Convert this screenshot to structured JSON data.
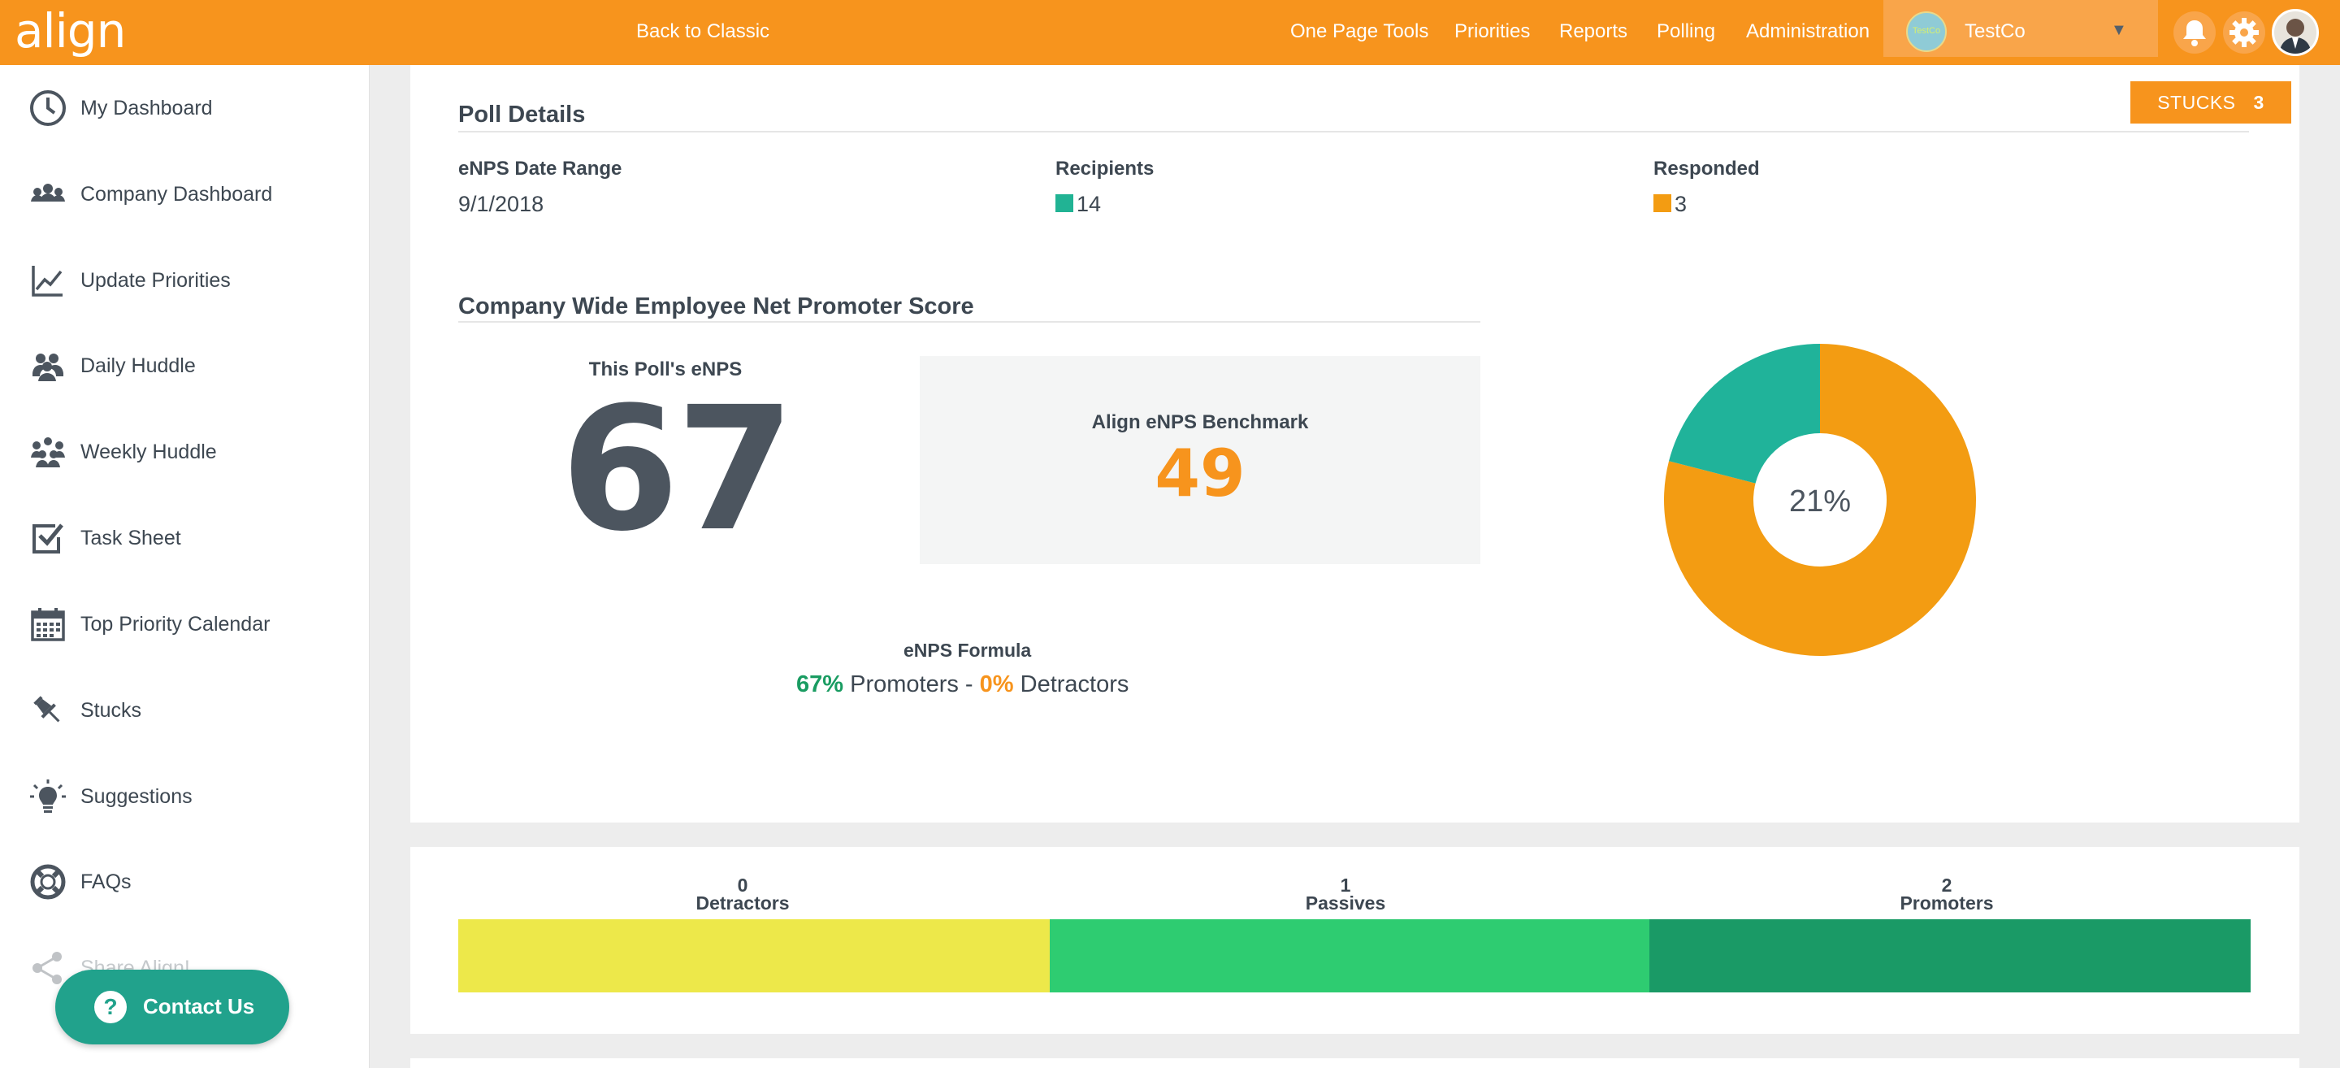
{
  "topbar": {
    "logo": "align",
    "back_classic": "Back to Classic",
    "nav": [
      "One Page Tools",
      "Priorities",
      "Reports",
      "Polling",
      "Administration"
    ],
    "company": {
      "name": "TestCo",
      "logo_text": "TestCo"
    }
  },
  "sidebar": {
    "items": [
      {
        "label": "My Dashboard",
        "icon": "dashboard-clock-icon"
      },
      {
        "label": "Company Dashboard",
        "icon": "company-people-icon"
      },
      {
        "label": "Update Priorities",
        "icon": "line-chart-icon"
      },
      {
        "label": "Daily Huddle",
        "icon": "group-icon"
      },
      {
        "label": "Weekly Huddle",
        "icon": "team-icon"
      },
      {
        "label": "Task Sheet",
        "icon": "checkbox-icon"
      },
      {
        "label": "Top Priority Calendar",
        "icon": "calendar-icon"
      },
      {
        "label": "Stucks",
        "icon": "pin-icon"
      },
      {
        "label": "Suggestions",
        "icon": "lightbulb-icon"
      },
      {
        "label": "FAQs",
        "icon": "lifebuoy-icon"
      },
      {
        "label": "Share Align!",
        "icon": "share-icon"
      }
    ],
    "contact": "Contact Us"
  },
  "stucks": {
    "label": "STUCKS",
    "count": "3"
  },
  "poll_details": {
    "title": "Poll Details",
    "date_range_label": "eNPS Date Range",
    "date_range_value": "9/1/2018",
    "recipients_label": "Recipients",
    "recipients_value": "14",
    "responded_label": "Responded",
    "responded_value": "3",
    "recipients_color": "#21b394",
    "responded_color": "#f39c12"
  },
  "enps": {
    "title": "Company Wide Employee Net Promoter Score",
    "poll_label": "This Poll's eNPS",
    "poll_value": "67",
    "benchmark_label": "Align eNPS Benchmark",
    "benchmark_value": "49",
    "formula_label": "eNPS Formula",
    "formula_promoters_pct": "67%",
    "formula_promoters_text": "Promoters -",
    "formula_detractors_pct": "0%",
    "formula_detractors_text": "Detractors"
  },
  "donut": {
    "center_label": "21%",
    "responded_fraction": 0.21,
    "colors": {
      "responded": "#20b39a",
      "rest": "#f39c12"
    }
  },
  "distribution": [
    {
      "label": "Detractors",
      "count": "0",
      "color": "#ede84a"
    },
    {
      "label": "Passives",
      "count": "1",
      "color": "#2ecc71"
    },
    {
      "label": "Promoters",
      "count": "2",
      "color": "#1a9a66"
    }
  ]
}
